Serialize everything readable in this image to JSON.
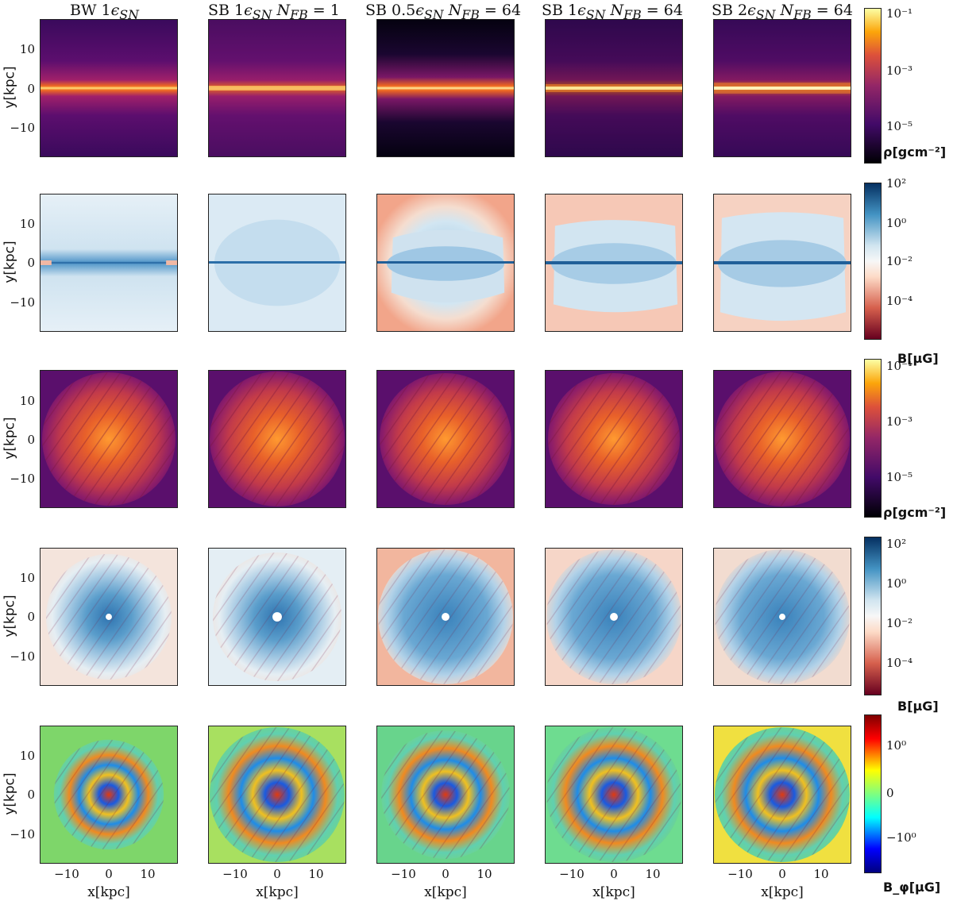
{
  "columns": [
    {
      "title": "BW 1ε_SN"
    },
    {
      "title": "SB 1ε_SN N_FB = 1"
    },
    {
      "title": "SB 0.5ε_SN N_FB = 64"
    },
    {
      "title": "SB 1ε_SN N_FB = 64"
    },
    {
      "title": "SB 2ε_SN N_FB = 64"
    }
  ],
  "rows": [
    {
      "quantity": "density edge-on",
      "colormap": "inferno",
      "colorbar_label": "ρ[gcm⁻²]",
      "colorbar_ticks": [
        "10⁻¹",
        "10⁻³",
        "10⁻⁵"
      ]
    },
    {
      "quantity": "magnetic field edge-on",
      "colormap": "RdBu",
      "colorbar_label": "B[μG]",
      "colorbar_ticks": [
        "10²",
        "10⁰",
        "10⁻²",
        "10⁻⁴"
      ]
    },
    {
      "quantity": "density face-on",
      "colormap": "inferno",
      "colorbar_label": "ρ[gcm⁻²]",
      "colorbar_ticks": [
        "10⁻¹",
        "10⁻³",
        "10⁻⁵"
      ]
    },
    {
      "quantity": "magnetic field face-on",
      "colormap": "RdBu",
      "colorbar_label": "B[μG]",
      "colorbar_ticks": [
        "10²",
        "10⁰",
        "10⁻²",
        "10⁻⁴"
      ]
    },
    {
      "quantity": "toroidal field face-on",
      "colormap": "jet",
      "colorbar_label": "B_φ[μG]",
      "colorbar_ticks": [
        "10⁰",
        "0",
        "−10⁰"
      ]
    }
  ],
  "axes": {
    "ylabel": "y[kpc]",
    "xlabel": "x[kpc]",
    "yticks": [
      "10",
      "0",
      "−10"
    ],
    "xticks": [
      "−10",
      "0",
      "10"
    ]
  }
}
